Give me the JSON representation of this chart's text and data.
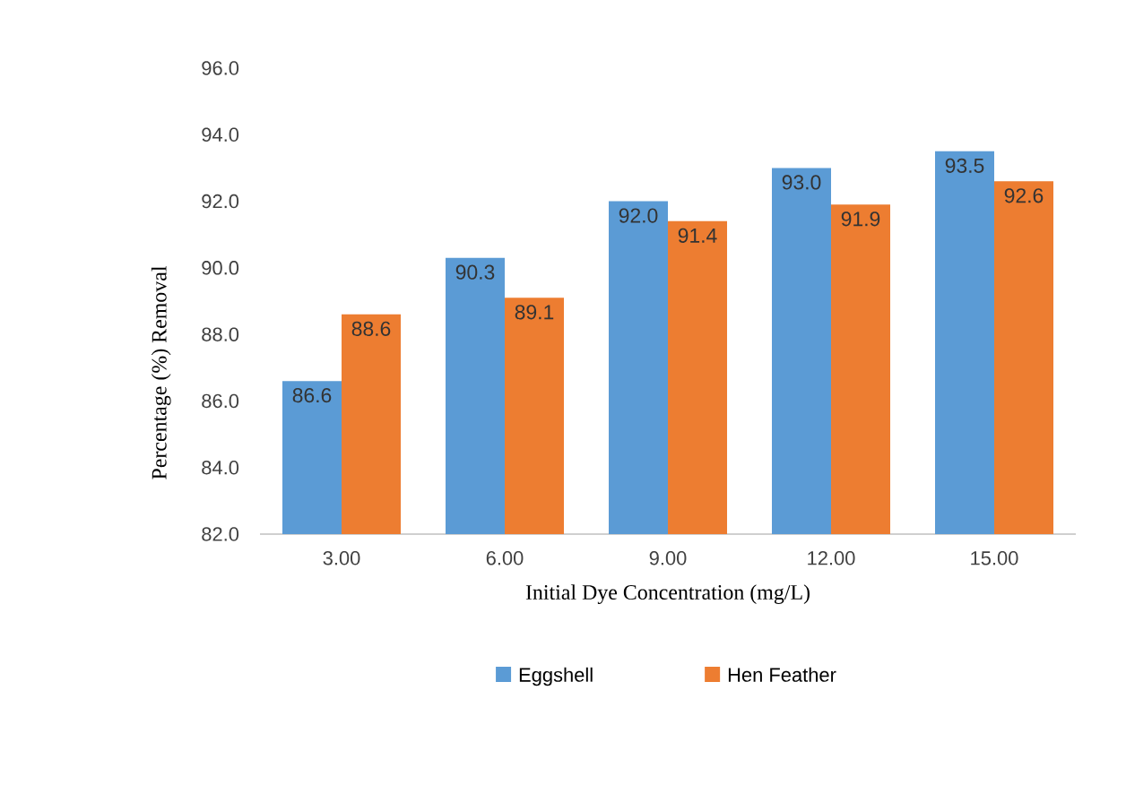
{
  "chart_data": {
    "type": "bar",
    "categories": [
      "3.00",
      "6.00",
      "9.00",
      "12.00",
      "15.00"
    ],
    "series": [
      {
        "name": "Eggshell",
        "color": "#5b9bd5",
        "values": [
          86.6,
          90.3,
          92.0,
          93.0,
          93.5
        ],
        "value_labels": [
          "86.6",
          "90.3",
          "92.0",
          "93.0",
          "93.5"
        ]
      },
      {
        "name": "Hen Feather",
        "color": "#ed7d31",
        "values": [
          88.6,
          89.1,
          91.4,
          91.9,
          92.6
        ],
        "value_labels": [
          "88.6",
          "89.1",
          "91.4",
          "91.9",
          "92.6"
        ]
      }
    ],
    "ylim": [
      82,
      96
    ],
    "yticks": [
      {
        "value": 82,
        "label": "82.0"
      },
      {
        "value": 84,
        "label": "84.0"
      },
      {
        "value": 86,
        "label": "86.0"
      },
      {
        "value": 88,
        "label": "88.0"
      },
      {
        "value": 90,
        "label": "90.0"
      },
      {
        "value": 92,
        "label": "92.0"
      },
      {
        "value": 94,
        "label": "94.0"
      },
      {
        "value": 96,
        "label": "96.0"
      }
    ],
    "xlabel": "Initial Dye Concentration (mg/L)",
    "ylabel": "Percentage (%) Removal",
    "grid": false,
    "legend": "bottom"
  }
}
